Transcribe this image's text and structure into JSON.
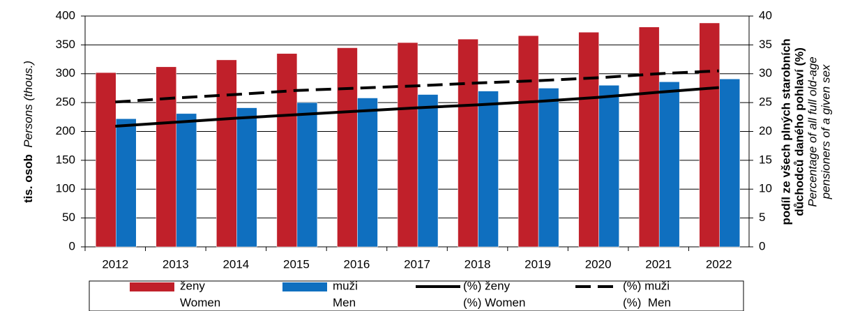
{
  "chart_data": {
    "type": "bar",
    "categories": [
      "2012",
      "2013",
      "2014",
      "2015",
      "2016",
      "2017",
      "2018",
      "2019",
      "2020",
      "2021",
      "2022"
    ],
    "series": [
      {
        "name": "ženy",
        "name_en": "Women",
        "type": "bar",
        "color": "#c0202a",
        "values": [
          302,
          312,
          324,
          335,
          345,
          354,
          360,
          366,
          372,
          381,
          388
        ]
      },
      {
        "name": "muži",
        "name_en": "Men",
        "type": "bar",
        "color": "#0f6fbf",
        "values": [
          222,
          231,
          241,
          250,
          258,
          264,
          270,
          275,
          280,
          286,
          291
        ]
      },
      {
        "name": "(%) ženy",
        "name_en": "(%) Women",
        "type": "line",
        "color": "#000000",
        "dashed": false,
        "axis": "y2",
        "values": [
          20.9,
          21.6,
          22.3,
          22.9,
          23.5,
          24.1,
          24.6,
          25.2,
          25.9,
          26.8,
          27.6
        ]
      },
      {
        "name": "(%) muži",
        "name_en": "(%)  Men",
        "type": "line",
        "color": "#000000",
        "dashed": true,
        "axis": "y2",
        "values": [
          25.1,
          25.8,
          26.4,
          27.1,
          27.5,
          27.9,
          28.4,
          28.8,
          29.3,
          30.0,
          30.5
        ]
      }
    ],
    "y_label": "tis. osob",
    "y_label_en": "Persons (thous.)",
    "y2_label": [
      "podíl ze všech plných starobních",
      "důchodců daného pohlaví (%)"
    ],
    "y2_label_en": [
      "Percentage of all full old-age",
      "pensioners of a given sex"
    ],
    "ylim": [
      0,
      400
    ],
    "yticks": [
      0,
      50,
      100,
      150,
      200,
      250,
      300,
      350,
      400
    ],
    "y2lim": [
      0,
      40
    ],
    "y2ticks": [
      0,
      5,
      10,
      15,
      20,
      25,
      30,
      35,
      40
    ],
    "grid": true,
    "legend": "bottom"
  }
}
